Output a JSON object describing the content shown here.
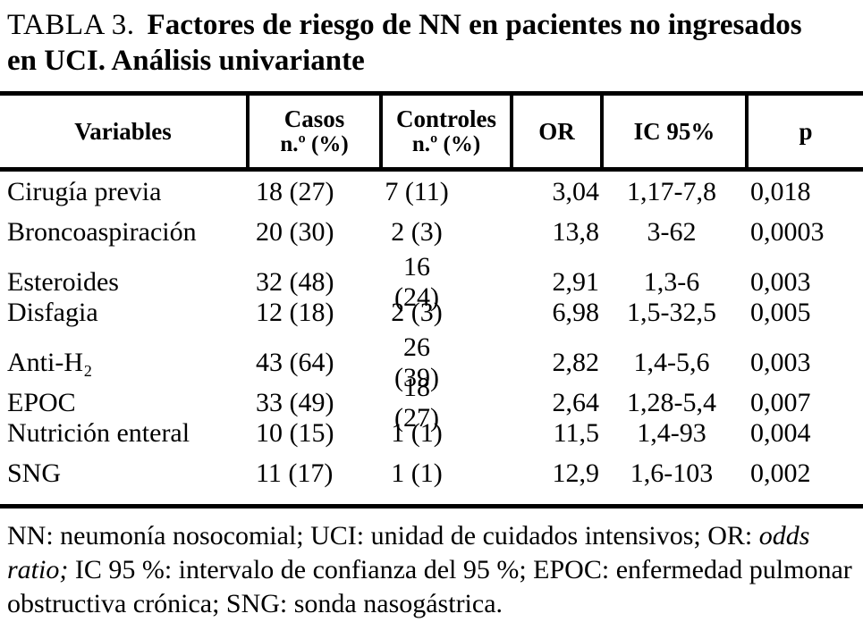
{
  "title": {
    "label": "TABLA 3.",
    "line1": "Factores de riesgo de NN en pacientes no ingresados",
    "line2": "en UCI. Análisis univariante"
  },
  "colors": {
    "text": "#000000",
    "background": "#ffffff",
    "rule": "#000000"
  },
  "table": {
    "columns": [
      {
        "label": "Variables",
        "sublabel": ""
      },
      {
        "label": "Casos",
        "sublabel": "n.º (%)"
      },
      {
        "label": "Controles",
        "sublabel": "n.º (%)"
      },
      {
        "label": "OR",
        "sublabel": ""
      },
      {
        "label": "IC 95%",
        "sublabel": ""
      },
      {
        "label": "p",
        "sublabel": ""
      }
    ],
    "rows": [
      {
        "variable": "Cirugía previa",
        "casos": "18 (27)",
        "controles": "7 (11)",
        "or": "3,04",
        "ic95": "1,17-7,8",
        "p": "0,018"
      },
      {
        "variable": "Broncoaspiración",
        "casos": "20 (30)",
        "controles": "2 (3)",
        "or": "13,8",
        "ic95": "3-62",
        "p": "0,0003"
      },
      {
        "variable": "Esteroides",
        "casos": "32 (48)",
        "controles": "16 (24)",
        "or": "2,91",
        "ic95": "1,3-6",
        "p": "0,003"
      },
      {
        "variable": "Disfagia",
        "casos": "12 (18)",
        "controles": "2 (3)",
        "or": "6,98",
        "ic95": "1,5-32,5",
        "p": "0,005"
      },
      {
        "variable": "Anti-H₂",
        "casos": "43 (64)",
        "controles": "26 (39)",
        "or": "2,82",
        "ic95": "1,4-5,6",
        "p": "0,003"
      },
      {
        "variable": "EPOC",
        "casos": "33 (49)",
        "controles": "18 (27)",
        "or": "2,64",
        "ic95": "1,28-5,4",
        "p": "0,007"
      },
      {
        "variable": "Nutrición enteral",
        "casos": "10 (15)",
        "controles": "1 (1)",
        "or": "11,5",
        "ic95": "1,4-93",
        "p": "0,004"
      },
      {
        "variable": "SNG",
        "casos": "11 (17)",
        "controles": "1 (1)",
        "or": "12,9",
        "ic95": "1,6-103",
        "p": "0,002"
      }
    ]
  },
  "footnote": {
    "part1": "NN: neumonía nosocomial; UCI: unidad de cuidados intensivos; OR: ",
    "italic": "odds ratio;",
    "part2": " IC 95 %: intervalo de confianza del 95 %; EPOC: enfermedad pulmonar obstructiva crónica; SNG: sonda nasogástrica."
  }
}
